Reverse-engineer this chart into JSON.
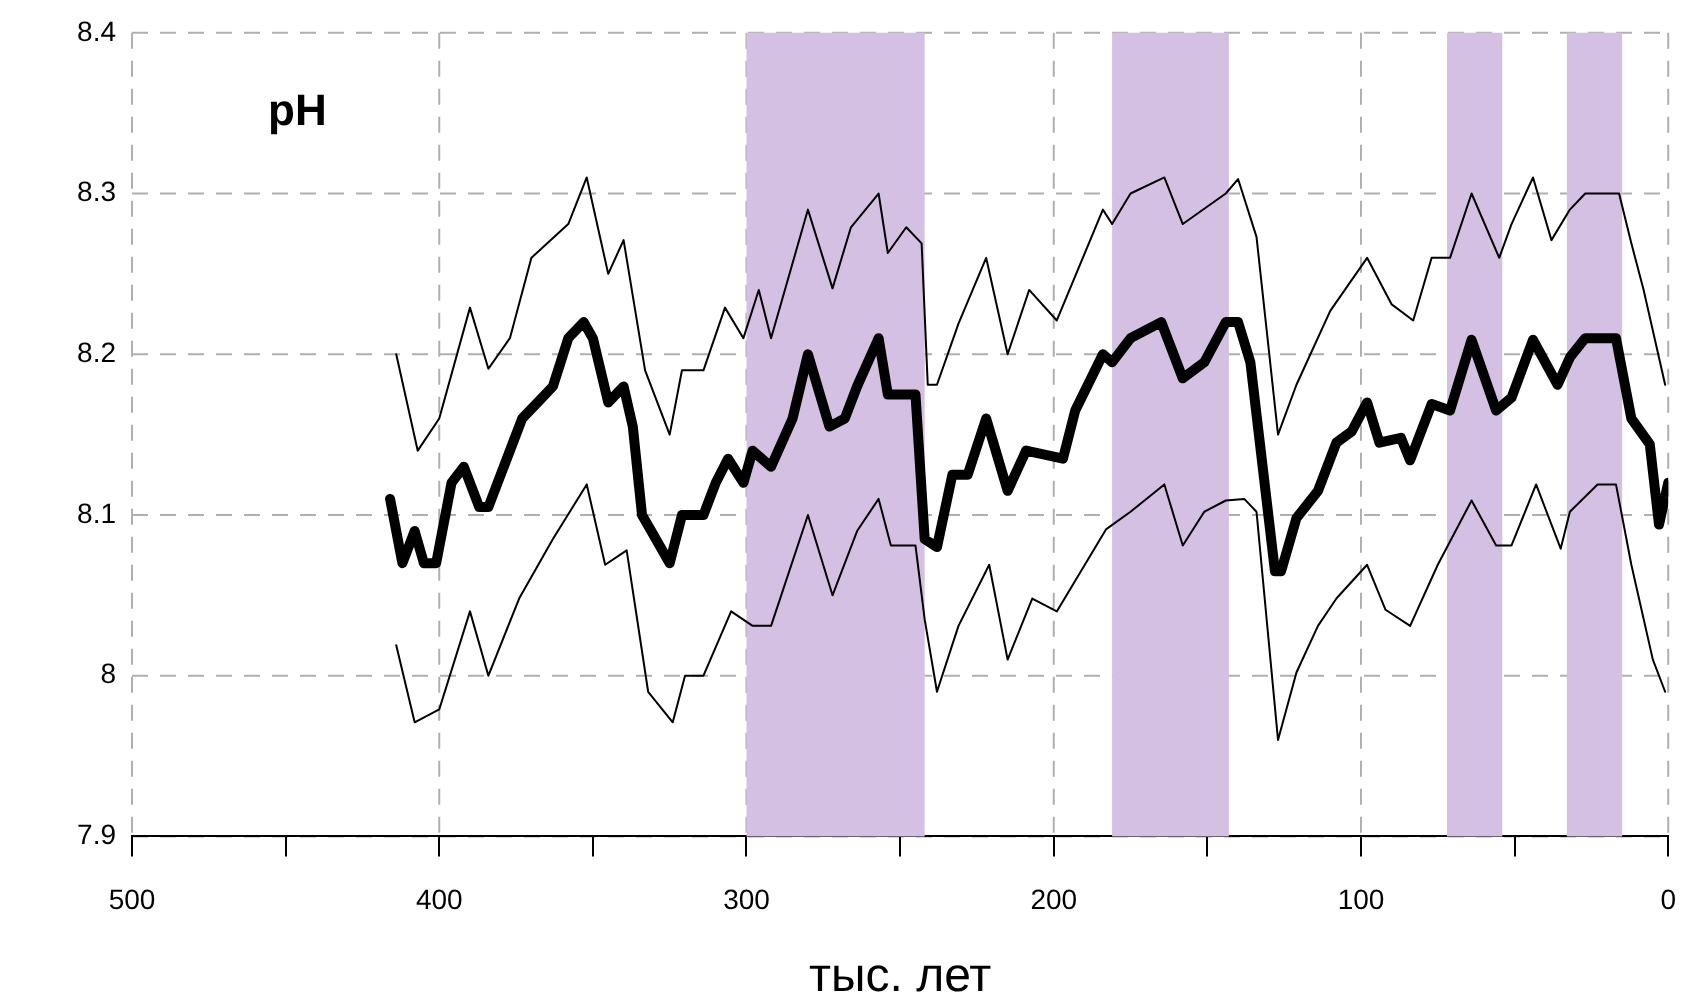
{
  "chart_data": {
    "type": "line",
    "xlabel": "тыс. лет",
    "annotations": [
      "pH"
    ],
    "xlim": [
      500,
      0
    ],
    "ylim": [
      7.9,
      8.4
    ],
    "xticks": [
      500,
      {
        "value": 450,
        "label": null
      },
      400,
      {
        "value": 350,
        "label": null
      },
      300,
      {
        "value": 250,
        "label": null
      },
      200,
      {
        "value": 150,
        "label": null
      },
      100,
      {
        "value": 50,
        "label": null
      },
      0
    ],
    "yticks": [
      7.9,
      8,
      8.1,
      8.2,
      8.3,
      8.4
    ],
    "grid": true,
    "legend": false,
    "marker": "none",
    "bands": [
      {
        "axis": "x",
        "from": 300,
        "to": 242,
        "color": "#d4c0e2"
      },
      {
        "axis": "x",
        "from": 181,
        "to": 143,
        "color": "#d4c0e2"
      },
      {
        "axis": "x",
        "from": 72,
        "to": 54,
        "color": "#d4c0e2"
      },
      {
        "axis": "x",
        "from": 33,
        "to": 15,
        "color": "#d4c0e2"
      }
    ],
    "series": [
      {
        "color": "#000000",
        "x": [
          416,
          412,
          408,
          405,
          401,
          396,
          392,
          387,
          384,
          381,
          376,
          373,
          368,
          363,
          358,
          353,
          350,
          345,
          340,
          337,
          334,
          331,
          325,
          321,
          314,
          310,
          306,
          301,
          298,
          292,
          285,
          280,
          273,
          268,
          264,
          257,
          254,
          245,
          242,
          238,
          233,
          228,
          222,
          215,
          209,
          197,
          193,
          184,
          181,
          175,
          165,
          158,
          151,
          144,
          140,
          136,
          128,
          126,
          121,
          114,
          108,
          103,
          98,
          94,
          87,
          84,
          77,
          71,
          64,
          56,
          51,
          44,
          36,
          32,
          27,
          17,
          12,
          6,
          3,
          0
        ],
        "values": [
          8.11,
          8.07,
          8.09,
          8.07,
          8.07,
          8.12,
          8.13,
          8.105,
          8.105,
          8.12,
          8.145,
          8.16,
          8.17,
          8.18,
          8.21,
          8.22,
          8.21,
          8.17,
          8.18,
          8.155,
          8.1,
          8.09,
          8.07,
          8.1,
          8.1,
          8.12,
          8.135,
          8.12,
          8.14,
          8.13,
          8.16,
          8.2,
          8.155,
          8.16,
          8.18,
          8.21,
          8.175,
          8.175,
          8.085,
          8.08,
          8.125,
          8.125,
          8.16,
          8.115,
          8.14,
          8.135,
          8.165,
          8.2,
          8.195,
          8.21,
          8.22,
          8.185,
          8.195,
          8.22,
          8.22,
          8.195,
          8.065,
          8.065,
          8.098,
          8.115,
          8.145,
          8.152,
          8.17,
          8.145,
          8.148,
          8.134,
          8.169,
          8.165,
          8.209,
          8.165,
          8.173,
          8.209,
          8.181,
          8.198,
          8.21,
          8.21,
          8.16,
          8.144,
          8.094,
          8.12
        ]
      },
      {
        "color": "#000000",
        "x": [
          414,
          407,
          400,
          390,
          384,
          377,
          370,
          358,
          352,
          345,
          340,
          333,
          325,
          321,
          314,
          307,
          301,
          296,
          292,
          280,
          272,
          266,
          257,
          254,
          248,
          243,
          241,
          238,
          231,
          222,
          215,
          208,
          199,
          184,
          181,
          175,
          164,
          158,
          144,
          140,
          134,
          127,
          121,
          110,
          98,
          90,
          83,
          77,
          71,
          64,
          55,
          51,
          44,
          38,
          32,
          27,
          16,
          12,
          8,
          1
        ],
        "values": [
          8.2,
          8.14,
          8.16,
          8.229,
          8.191,
          8.21,
          8.26,
          8.281,
          8.31,
          8.25,
          8.271,
          8.19,
          8.15,
          8.19,
          8.19,
          8.229,
          8.21,
          8.24,
          8.21,
          8.29,
          8.241,
          8.279,
          8.3,
          8.263,
          8.279,
          8.269,
          8.181,
          8.181,
          8.219,
          8.26,
          8.2,
          8.24,
          8.221,
          8.29,
          8.281,
          8.3,
          8.31,
          8.281,
          8.3,
          8.309,
          8.273,
          8.15,
          8.181,
          8.227,
          8.26,
          8.231,
          8.221,
          8.26,
          8.26,
          8.3,
          8.26,
          8.281,
          8.31,
          8.271,
          8.29,
          8.3,
          8.3,
          8.269,
          8.24,
          8.181
        ]
      },
      {
        "color": "#000000",
        "x": [
          414,
          408,
          400,
          390,
          384,
          374,
          363,
          352,
          346,
          339,
          332,
          324,
          320,
          314,
          305,
          298,
          292,
          280,
          272,
          264,
          257,
          253,
          245,
          242,
          238,
          231,
          221,
          215,
          207,
          199,
          183,
          175,
          164,
          158,
          151,
          144,
          138,
          134,
          127,
          121,
          114,
          108,
          98,
          92,
          84,
          75,
          64,
          56,
          51,
          43,
          35,
          32,
          23,
          17,
          12,
          5,
          1
        ],
        "values": [
          8.019,
          7.971,
          7.979,
          8.04,
          8.0,
          8.048,
          8.085,
          8.119,
          8.069,
          8.078,
          7.99,
          7.971,
          8.0,
          8.0,
          8.04,
          8.031,
          8.031,
          8.1,
          8.05,
          8.09,
          8.11,
          8.081,
          8.081,
          8.035,
          7.99,
          8.031,
          8.069,
          8.01,
          8.048,
          8.04,
          8.091,
          8.102,
          8.119,
          8.081,
          8.102,
          8.109,
          8.11,
          8.102,
          7.96,
          8.002,
          8.031,
          8.048,
          8.069,
          8.041,
          8.031,
          8.069,
          8.109,
          8.081,
          8.081,
          8.119,
          8.079,
          8.102,
          8.119,
          8.119,
          8.069,
          8.01,
          7.99
        ]
      }
    ]
  }
}
